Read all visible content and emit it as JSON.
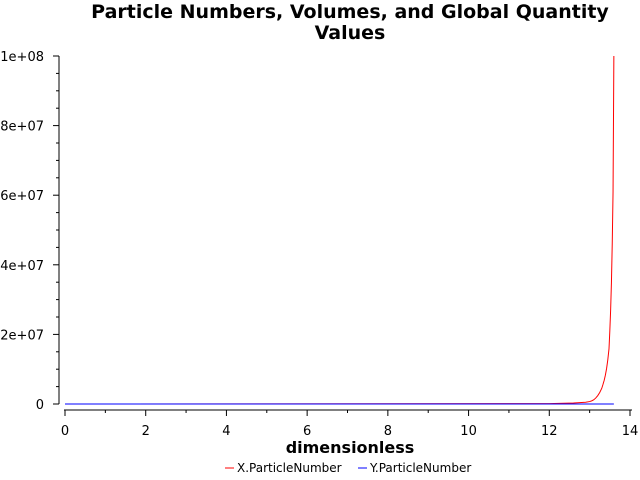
{
  "chart_data": {
    "type": "line",
    "title_lines": [
      "Particle Numbers, Volumes, and Global Quantity",
      "Values"
    ],
    "xlabel": "dimensionless",
    "ylabel": "",
    "xlim": [
      0,
      14
    ],
    "ylim": [
      0,
      100000000
    ],
    "x_ticks": [
      0,
      2,
      4,
      6,
      8,
      10,
      12,
      14
    ],
    "x_tick_labels": [
      "0",
      "2",
      "4",
      "6",
      "8",
      "10",
      "12",
      "14"
    ],
    "y_ticks": [
      0,
      20000000,
      40000000,
      60000000,
      80000000,
      100000000
    ],
    "y_tick_labels": [
      "0",
      "2e+07",
      "4e+07",
      "6e+07",
      "8e+07",
      "1e+08"
    ],
    "grid": false,
    "legend_position": "bottom-center",
    "series": [
      {
        "name": "X.ParticleNumber",
        "color": "#ff0000",
        "x": [
          0,
          12.0,
          12.6,
          12.9,
          13.0,
          13.05,
          13.1,
          13.15,
          13.2,
          13.25,
          13.3,
          13.33,
          13.36,
          13.39,
          13.42,
          13.45,
          13.48,
          13.5,
          13.52,
          13.54,
          13.56,
          13.58,
          13.6
        ],
        "values": [
          0,
          100000,
          300000,
          500000,
          700000,
          900000,
          1200000,
          1700000,
          2400000,
          3300000,
          4500000,
          5600000,
          6800000,
          8300000,
          10200000,
          12700000,
          15900000,
          21000000,
          27000000,
          35000000,
          46000000,
          61000000,
          100000000
        ]
      },
      {
        "name": "Y.ParticleNumber",
        "color": "#0000ff",
        "x": [
          0,
          13.6
        ],
        "values": [
          0,
          0
        ]
      }
    ]
  }
}
